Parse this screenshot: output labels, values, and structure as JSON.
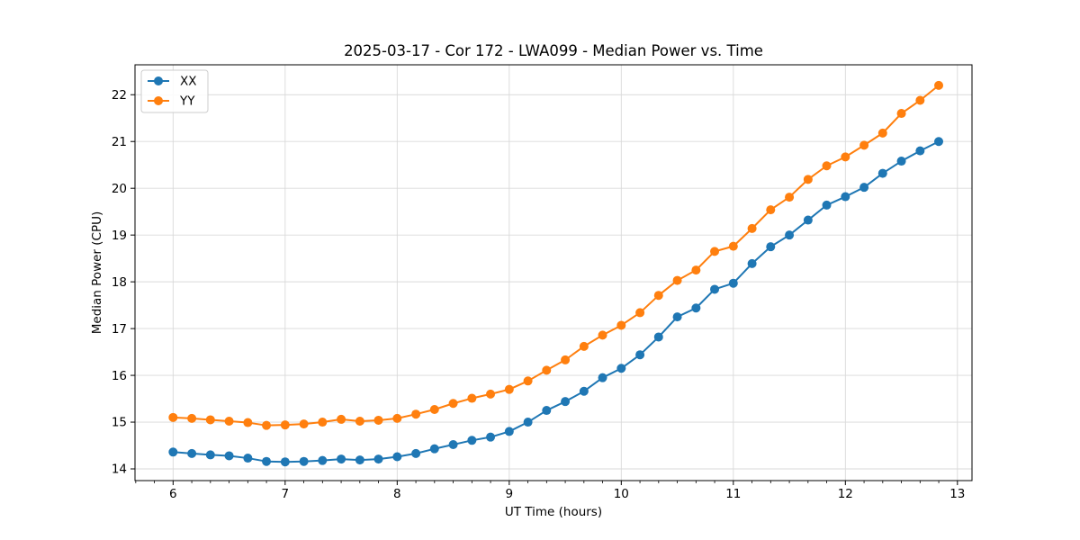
{
  "title": "2025-03-17 - Cor 172 - LWA099 - Median Power vs. Time",
  "chart_data": {
    "type": "line",
    "title": "2025-03-17 - Cor 172 - LWA099 - Median Power vs. Time",
    "xlabel": "UT Time (hours)",
    "ylabel": "Median Power (CPU)",
    "xlim": [
      5.66,
      13.13
    ],
    "ylim": [
      13.75,
      22.64
    ],
    "x_major_ticks": [
      6,
      7,
      8,
      9,
      10,
      11,
      12,
      13
    ],
    "y_major_ticks": [
      14,
      15,
      16,
      17,
      18,
      19,
      20,
      21,
      22
    ],
    "x_minor_step": 0.1666667,
    "grid": "major-both",
    "grid_color": "#d9d9d9",
    "legend_position": "upper left",
    "x": [
      6.0,
      6.167,
      6.333,
      6.5,
      6.667,
      6.833,
      7.0,
      7.167,
      7.333,
      7.5,
      7.667,
      7.833,
      8.0,
      8.167,
      8.333,
      8.5,
      8.667,
      8.833,
      9.0,
      9.167,
      9.333,
      9.5,
      9.667,
      9.833,
      10.0,
      10.167,
      10.333,
      10.5,
      10.667,
      10.833,
      11.0,
      11.167,
      11.333,
      11.5,
      11.667,
      11.833,
      12.0,
      12.167,
      12.333,
      12.5,
      12.667,
      12.833
    ],
    "series": [
      {
        "name": "XX",
        "color": "#1f77b4",
        "values": [
          14.36,
          14.33,
          14.3,
          14.28,
          14.23,
          14.16,
          14.15,
          14.16,
          14.18,
          14.21,
          14.19,
          14.21,
          14.26,
          14.33,
          14.43,
          14.52,
          14.61,
          14.68,
          14.8,
          15.0,
          15.25,
          15.44,
          15.66,
          15.95,
          16.15,
          16.44,
          16.82,
          17.25,
          17.44,
          17.84,
          17.97,
          18.39,
          18.75,
          19.0,
          19.32,
          19.64,
          19.82,
          20.02,
          20.32,
          20.58,
          20.8,
          21.0
        ]
      },
      {
        "name": "YY",
        "color": "#ff7f0e",
        "values": [
          15.1,
          15.08,
          15.05,
          15.02,
          14.99,
          14.93,
          14.94,
          14.96,
          15.0,
          15.06,
          15.02,
          15.04,
          15.08,
          15.17,
          15.27,
          15.4,
          15.51,
          15.6,
          15.7,
          15.88,
          16.11,
          16.33,
          16.62,
          16.86,
          17.07,
          17.34,
          17.71,
          18.03,
          18.25,
          18.65,
          18.76,
          19.14,
          19.54,
          19.81,
          20.19,
          20.48,
          20.67,
          20.92,
          21.18,
          21.6,
          21.88,
          22.2
        ]
      }
    ]
  }
}
